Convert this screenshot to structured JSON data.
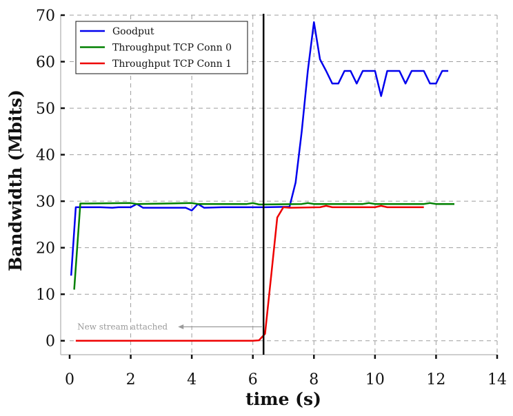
{
  "chart_data": {
    "type": "line",
    "title": "",
    "xlabel": "time (s)",
    "ylabel": "Bandwidth (Mbits)",
    "xlim": [
      0,
      14
    ],
    "ylim": [
      -3,
      70
    ],
    "xticks": [
      0,
      2,
      4,
      6,
      8,
      10,
      12,
      14
    ],
    "yticks": [
      0,
      10,
      20,
      30,
      40,
      50,
      60,
      70
    ],
    "grid": true,
    "legend_position": "top-left",
    "series": [
      {
        "name": "Goodput",
        "color": "#0000ee",
        "points": [
          [
            0.05,
            14
          ],
          [
            0.2,
            28.7
          ],
          [
            0.4,
            28.7
          ],
          [
            1.0,
            28.7
          ],
          [
            1.4,
            28.6
          ],
          [
            1.6,
            28.7
          ],
          [
            2.0,
            28.7
          ],
          [
            2.2,
            29.4
          ],
          [
            2.4,
            28.6
          ],
          [
            3.0,
            28.6
          ],
          [
            3.8,
            28.6
          ],
          [
            4.0,
            28.0
          ],
          [
            4.2,
            29.4
          ],
          [
            4.4,
            28.6
          ],
          [
            5.0,
            28.7
          ],
          [
            6.0,
            28.7
          ],
          [
            6.4,
            28.7
          ],
          [
            7.2,
            28.8
          ],
          [
            7.4,
            34
          ],
          [
            7.6,
            45
          ],
          [
            7.8,
            58
          ],
          [
            8.0,
            68.5
          ],
          [
            8.2,
            60.5
          ],
          [
            8.4,
            58
          ],
          [
            8.6,
            55.3
          ],
          [
            8.8,
            55.3
          ],
          [
            9.0,
            58
          ],
          [
            9.2,
            58
          ],
          [
            9.4,
            55.3
          ],
          [
            9.6,
            58
          ],
          [
            9.8,
            58
          ],
          [
            10.0,
            58
          ],
          [
            10.2,
            52.6
          ],
          [
            10.4,
            58
          ],
          [
            10.6,
            58
          ],
          [
            10.8,
            58
          ],
          [
            11.0,
            55.3
          ],
          [
            11.2,
            58
          ],
          [
            11.4,
            58
          ],
          [
            11.6,
            58
          ],
          [
            11.8,
            55.3
          ],
          [
            12.0,
            55.3
          ],
          [
            12.2,
            58
          ],
          [
            12.4,
            58
          ]
        ]
      },
      {
        "name": "Throughput TCP Conn 0",
        "color": "#008000",
        "points": [
          [
            0.15,
            11
          ],
          [
            0.35,
            29.5
          ],
          [
            0.6,
            29.5
          ],
          [
            2.0,
            29.6
          ],
          [
            2.2,
            29.4
          ],
          [
            4.0,
            29.6
          ],
          [
            4.2,
            29.4
          ],
          [
            5.8,
            29.4
          ],
          [
            6.0,
            29.6
          ],
          [
            6.2,
            29.3
          ],
          [
            7.6,
            29.4
          ],
          [
            7.8,
            29.6
          ],
          [
            8.0,
            29.4
          ],
          [
            9.6,
            29.4
          ],
          [
            9.8,
            29.6
          ],
          [
            10.0,
            29.4
          ],
          [
            11.6,
            29.4
          ],
          [
            11.8,
            29.6
          ],
          [
            12.0,
            29.4
          ],
          [
            12.6,
            29.4
          ]
        ]
      },
      {
        "name": "Throughput TCP Conn 1",
        "color": "#ee0000",
        "points": [
          [
            0.2,
            0
          ],
          [
            6.0,
            0
          ],
          [
            6.2,
            0.1
          ],
          [
            6.4,
            1.5
          ],
          [
            6.6,
            14
          ],
          [
            6.8,
            26.5
          ],
          [
            7.0,
            28.7
          ],
          [
            7.2,
            28.6
          ],
          [
            8.2,
            28.7
          ],
          [
            8.4,
            29.0
          ],
          [
            8.6,
            28.7
          ],
          [
            10.0,
            28.7
          ],
          [
            10.2,
            29.0
          ],
          [
            10.4,
            28.7
          ],
          [
            11.6,
            28.7
          ]
        ]
      }
    ],
    "vertical_line": {
      "x": 6.35,
      "color": "#000000"
    },
    "annotation": {
      "text": "New stream attached",
      "color": "#9a9a9a",
      "text_at": [
        0.25,
        3
      ],
      "arrow_from": [
        6.3,
        3
      ],
      "arrow_to": [
        3.55,
        3
      ]
    }
  }
}
